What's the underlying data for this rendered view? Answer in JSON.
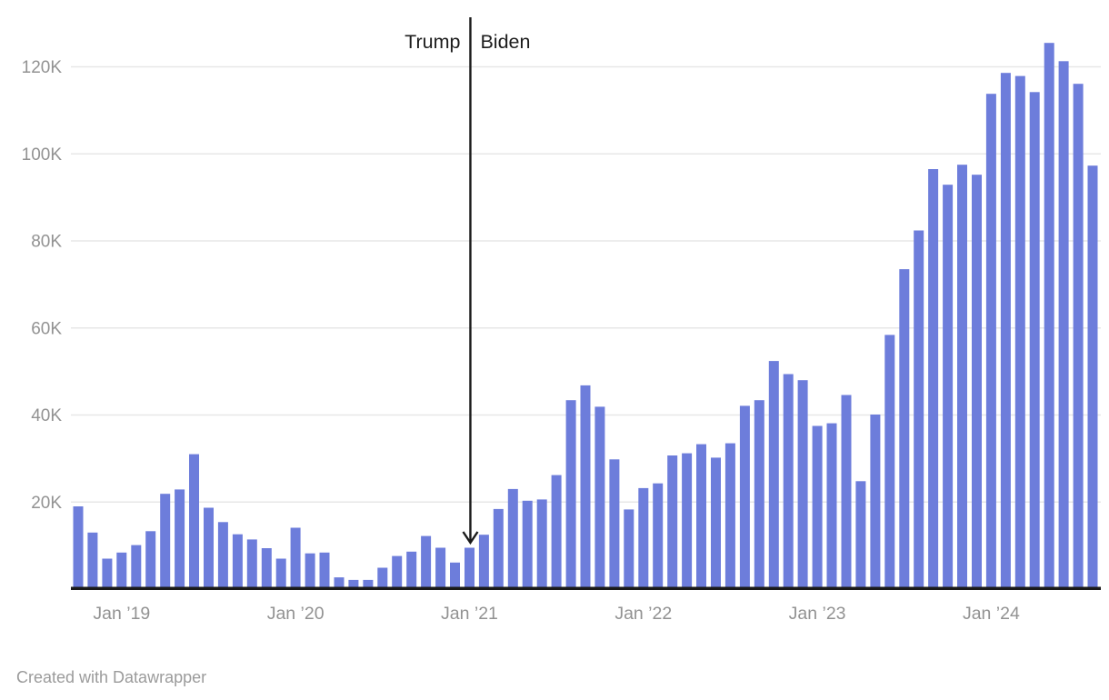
{
  "chart_data": {
    "type": "bar",
    "title": "",
    "xlabel": "",
    "ylabel": "",
    "ylim": [
      0,
      130000
    ],
    "grid": "horizontal",
    "bar_color": "#6d7ddb",
    "months": [
      "Oct 2018",
      "Nov 2018",
      "Dec 2018",
      "Jan 2019",
      "Feb 2019",
      "Mar 2019",
      "Apr 2019",
      "May 2019",
      "Jun 2019",
      "Jul 2019",
      "Aug 2019",
      "Sep 2019",
      "Oct 2019",
      "Nov 2019",
      "Dec 2019",
      "Jan 2020",
      "Feb 2020",
      "Mar 2020",
      "Apr 2020",
      "May 2020",
      "Jun 2020",
      "Jul 2020",
      "Aug 2020",
      "Sep 2020",
      "Oct 2020",
      "Nov 2020",
      "Dec 2020",
      "Jan 2021",
      "Feb 2021",
      "Mar 2021",
      "Apr 2021",
      "May 2021",
      "Jun 2021",
      "Jul 2021",
      "Aug 2021",
      "Sep 2021",
      "Oct 2021",
      "Nov 2021",
      "Dec 2021",
      "Jan 2022",
      "Feb 2022",
      "Mar 2022",
      "Apr 2022",
      "May 2022",
      "Jun 2022",
      "Jul 2022",
      "Aug 2022",
      "Sep 2022",
      "Oct 2022",
      "Nov 2022",
      "Dec 2022",
      "Jan 2023",
      "Feb 2023",
      "Mar 2023",
      "Apr 2023",
      "May 2023",
      "Jun 2023",
      "Jul 2023",
      "Aug 2023",
      "Sep 2023",
      "Oct 2023",
      "Nov 2023",
      "Dec 2023",
      "Jan 2024",
      "Feb 2024",
      "Mar 2024",
      "Apr 2024",
      "May 2024",
      "Jun 2024",
      "Jul 2024",
      "Aug 2024"
    ],
    "values": [
      19000,
      13000,
      7000,
      8400,
      10100,
      13300,
      21900,
      22900,
      31000,
      18700,
      15400,
      12600,
      11400,
      9400,
      7000,
      14100,
      8200,
      8400,
      2700,
      2100,
      2100,
      4900,
      7600,
      8600,
      12200,
      9500,
      6100,
      9500,
      12500,
      18400,
      23000,
      20300,
      20600,
      26200,
      43400,
      46800,
      41900,
      29800,
      18300,
      23200,
      24300,
      30700,
      31200,
      33300,
      30200,
      33500,
      42100,
      43400,
      52400,
      49400,
      48000,
      37500,
      38100,
      44600,
      24800,
      40100,
      58400,
      73500,
      82400,
      96500,
      92900,
      97500,
      95200,
      113800,
      118600,
      117900,
      114200,
      125500,
      121300,
      116100,
      97300
    ],
    "y_ticks": [
      {
        "label": "20K",
        "value": 20000
      },
      {
        "label": "40K",
        "value": 40000
      },
      {
        "label": "60K",
        "value": 60000
      },
      {
        "label": "80K",
        "value": 80000
      },
      {
        "label": "100K",
        "value": 100000
      },
      {
        "label": "120K",
        "value": 120000
      }
    ],
    "x_ticks": [
      {
        "label": "Jan ’19",
        "month_index": 3
      },
      {
        "label": "Jan ’20",
        "month_index": 15
      },
      {
        "label": "Jan ’21",
        "month_index": 27
      },
      {
        "label": "Jan ’22",
        "month_index": 39
      },
      {
        "label": "Jan ’23",
        "month_index": 51
      },
      {
        "label": "Jan ’24",
        "month_index": 63
      }
    ],
    "annotation": {
      "left_label": "Trump",
      "right_label": "Biden",
      "divider_month": "Jan 2021",
      "month_index": 27
    },
    "colors": {
      "bar": "#6d7ddb",
      "gridline": "#e7e7e7",
      "baseline": "#1a1a1a",
      "tick_text": "#929292",
      "annotation_line": "#1a1a1a",
      "annotation_text": "#1d1d1d",
      "footer_text": "#9b9b9b"
    }
  },
  "footer": {
    "attribution": "Created with Datawrapper"
  }
}
